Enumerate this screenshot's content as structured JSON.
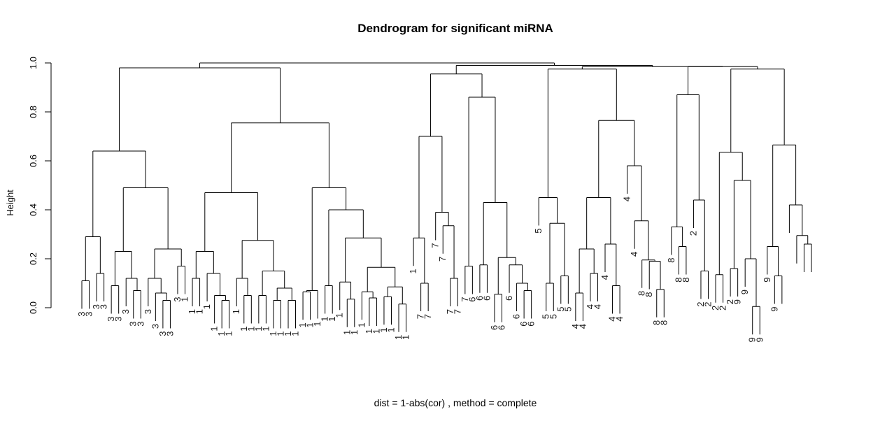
{
  "chart_data": {
    "type": "dendrogram",
    "title": "Dendrogram for significant miRNA",
    "ylabel": "Height",
    "subtitle": "dist = 1-abs(cor) ,  method = complete",
    "ylim": [
      0,
      1
    ],
    "yticks": [
      0.0,
      0.2,
      0.4,
      0.6,
      0.8,
      1.0
    ],
    "ytick_labels": [
      "0.0",
      "0.2",
      "0.4",
      "0.6",
      "0.8",
      "1.0"
    ],
    "leaf_labels": [
      "3",
      "3",
      "3",
      "3",
      "3",
      "3",
      "3",
      "3",
      "3",
      "3",
      "3",
      "3",
      "3",
      "3",
      "1",
      "1",
      "1",
      "1",
      "1",
      "1",
      "1",
      "1",
      "1",
      "1",
      "1",
      "1",
      "1",
      "1",
      "1",
      "1",
      "1",
      "1",
      "1",
      "1",
      "1",
      "1",
      "1",
      "1",
      "1",
      "1",
      "1",
      "1",
      "1",
      "1",
      "1",
      "1",
      "7",
      "7",
      "7",
      "7",
      "7",
      "7",
      "7",
      "6",
      "6",
      "6",
      "6",
      "6",
      "6",
      "6",
      "6",
      "6",
      "5",
      "5",
      "5",
      "5",
      "5",
      "4",
      "4",
      "4",
      "4",
      "4",
      "4",
      "4",
      "4",
      "4",
      "8",
      "8",
      "8",
      "8",
      "8",
      "8",
      "8",
      "2",
      "2",
      "2",
      "2",
      "2",
      "2",
      "9",
      "9",
      "9",
      "9",
      "9",
      "9"
    ],
    "leaf_heights": [
      0.113,
      0.113,
      0.138,
      0.138,
      0.293,
      0.094,
      0.094,
      0.234,
      0.125,
      0.125,
      0.073,
      0.073,
      0.241,
      0.122,
      0.122,
      0.059,
      0.028,
      0.028,
      0.168,
      0.168,
      0.121,
      0.121,
      0.139,
      0.052,
      0.052,
      0.028,
      0.028,
      0.121,
      0.052,
      0.052,
      0.052,
      0.052,
      0.034,
      0.034,
      0.082,
      0.031,
      0.031,
      0.074,
      0.068,
      0.068,
      0.094,
      0.094,
      0.108,
      0.038,
      0.038,
      0.066,
      0.04,
      0.04,
      0.085,
      0.045,
      0.045,
      0.015,
      0.015,
      0.285,
      0.1,
      0.1,
      0.395,
      0.335,
      0.335,
      0.123,
      0.123,
      0.173,
      0.173,
      0.176,
      0.176,
      0.205,
      0.055,
      0.055,
      0.102,
      0.072,
      0.072,
      0.448,
      0.102,
      0.102,
      0.13,
      0.13,
      0.06,
      0.06,
      0.238,
      0.14,
      0.14,
      0.26,
      0.092,
      0.092,
      0.578,
      0.358,
      0.196,
      0.189,
      0.073,
      0.073,
      0.332,
      0.248,
      0.248,
      0.44,
      0.15,
      0.15,
      0.135,
      0.135,
      0.16,
      0.16,
      0.202,
      0.005,
      0.005,
      0.252,
      0.128,
      0.128,
      0.422,
      0.295,
      0.258,
      0.258
    ]
  }
}
